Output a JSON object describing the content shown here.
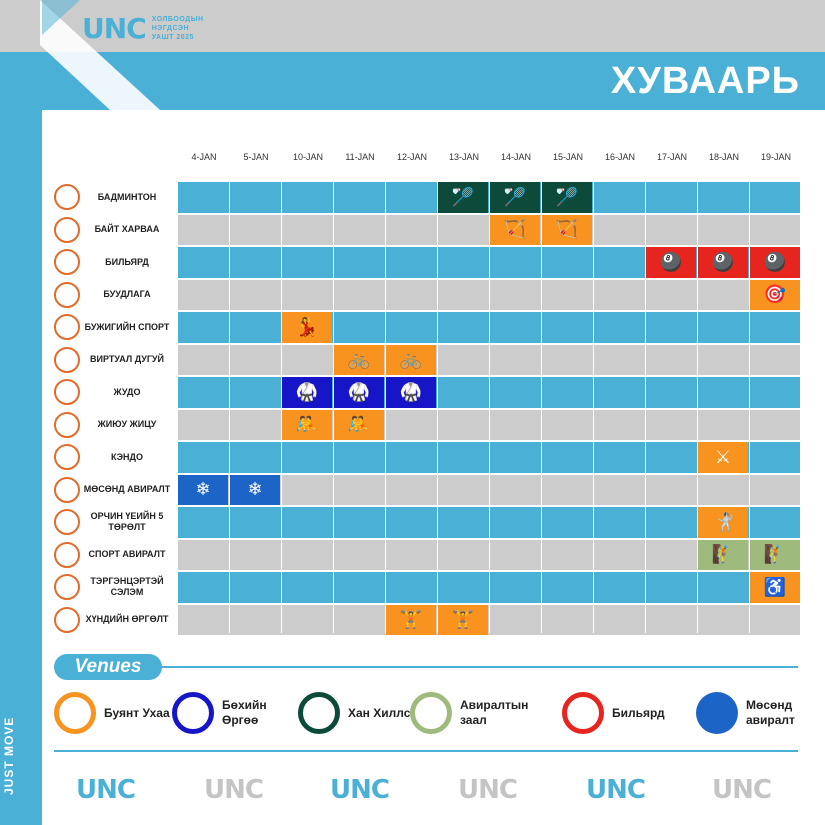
{
  "brand": {
    "logo": "UNC",
    "tagline": [
      "ХОЛБООДЫН",
      "НЭГДСЭН",
      "УАШТ 2025"
    ]
  },
  "page_title": "ХУВААРЬ",
  "side_text": "JUST MOVE",
  "dates": [
    "4-JAN",
    "5-JAN",
    "10-JAN",
    "11-JAN",
    "12-JAN",
    "13-JAN",
    "14-JAN",
    "15-JAN",
    "16-JAN",
    "17-JAN",
    "18-JAN",
    "19-JAN"
  ],
  "colors": {
    "blue_row": "#4ab0d6",
    "grey_row": "#cccccc",
    "green": "#0e4a3a",
    "orange": "#f7931e",
    "red": "#e6251f",
    "navy": "#1616c8",
    "sage": "#9fba7d",
    "mbrand": "#1c64c6"
  },
  "sports": [
    {
      "name": "БАДМИНТОН",
      "events": [
        {
          "date": 5,
          "color": "green",
          "icon": "badminton-icon"
        },
        {
          "date": 6,
          "color": "green",
          "icon": "badminton-icon"
        },
        {
          "date": 7,
          "color": "green",
          "icon": "badminton-icon"
        }
      ]
    },
    {
      "name": "БАЙТ ХАРВАА",
      "events": [
        {
          "date": 6,
          "color": "orange",
          "icon": "archery-icon"
        },
        {
          "date": 7,
          "color": "orange",
          "icon": "archery-icon"
        }
      ]
    },
    {
      "name": "БИЛЬЯРД",
      "events": [
        {
          "date": 9,
          "color": "red",
          "icon": "billiard-icon"
        },
        {
          "date": 10,
          "color": "red",
          "icon": "billiard-icon"
        },
        {
          "date": 11,
          "color": "red",
          "icon": "billiard-icon"
        }
      ]
    },
    {
      "name": "БУУДЛАГА",
      "events": [
        {
          "date": 11,
          "color": "orange",
          "icon": "shooting-icon"
        }
      ]
    },
    {
      "name": "БУЖИГИЙН СПОРТ",
      "events": [
        {
          "date": 2,
          "color": "orange",
          "icon": "dance-icon"
        }
      ]
    },
    {
      "name": "ВИРТУАЛ ДУГУЙ",
      "events": [
        {
          "date": 3,
          "color": "orange",
          "icon": "cycling-icon"
        },
        {
          "date": 4,
          "color": "orange",
          "icon": "cycling-icon"
        }
      ]
    },
    {
      "name": "ЖУДО",
      "events": [
        {
          "date": 2,
          "color": "navy",
          "icon": "judo-icon"
        },
        {
          "date": 3,
          "color": "navy",
          "icon": "judo-icon"
        },
        {
          "date": 4,
          "color": "navy",
          "icon": "judo-icon"
        }
      ]
    },
    {
      "name": "ЖИЮУ ЖИЦУ",
      "events": [
        {
          "date": 2,
          "color": "orange",
          "icon": "jujitsu-icon"
        },
        {
          "date": 3,
          "color": "orange",
          "icon": "jujitsu-icon"
        }
      ]
    },
    {
      "name": "КЭНДО",
      "events": [
        {
          "date": 10,
          "color": "orange",
          "icon": "kendo-icon"
        }
      ]
    },
    {
      "name": "МӨСӨНД АВИРАЛТ",
      "events": [
        {
          "date": 0,
          "color": "mbrand",
          "icon": "ice-climb-icon"
        },
        {
          "date": 1,
          "color": "mbrand",
          "icon": "ice-climb-icon"
        }
      ]
    },
    {
      "name": "ОРЧИН ҮЕИЙН 5 ТӨРӨЛТ",
      "events": [
        {
          "date": 10,
          "color": "orange",
          "icon": "pentathlon-icon"
        }
      ]
    },
    {
      "name": "СПОРТ АВИРАЛТ",
      "events": [
        {
          "date": 10,
          "color": "sage",
          "icon": "climb-icon"
        },
        {
          "date": 11,
          "color": "sage",
          "icon": "climb-icon"
        }
      ]
    },
    {
      "name": "ТЭРГЭНЦЭРТЭЙ СЭЛЭМ",
      "events": [
        {
          "date": 11,
          "color": "orange",
          "icon": "wheelchair-fencing-icon"
        }
      ]
    },
    {
      "name": "ХҮНДИЙН ӨРГӨЛТ",
      "events": [
        {
          "date": 4,
          "color": "orange",
          "icon": "weightlifting-icon"
        },
        {
          "date": 5,
          "color": "orange",
          "icon": "weightlifting-icon"
        }
      ]
    }
  ],
  "venues_title": "Venues",
  "venues": [
    {
      "name": "Буянт Ухаа",
      "ring": "#f7931e"
    },
    {
      "name": "Бөхийн Өргөө",
      "ring": "#1616c8"
    },
    {
      "name": "Хан Хиллс",
      "ring": "#0e4a3a"
    },
    {
      "name": "Авиралтын заал",
      "ring": "#9fba7d"
    },
    {
      "name": "Бильярд",
      "ring": "#e6251f"
    },
    {
      "name": "Мөсөнд авиралт",
      "ring": "#1c64c6"
    }
  ],
  "footer_logos": [
    "UNC",
    "UNC",
    "UNC",
    "UNC",
    "UNC",
    "UNC"
  ]
}
